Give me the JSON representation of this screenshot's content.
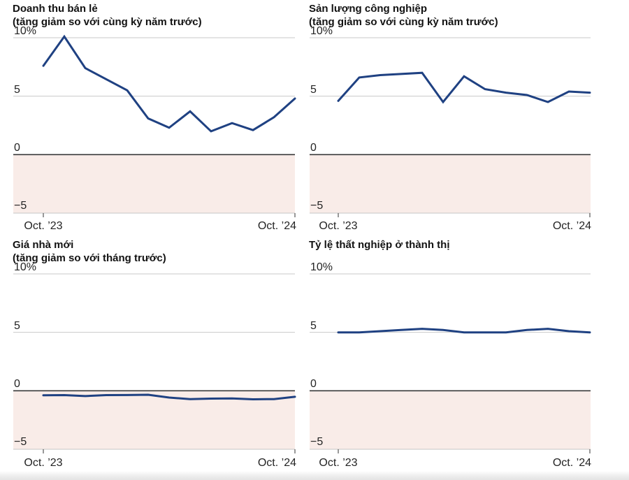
{
  "colors": {
    "line": "#1f4182",
    "grid": "#c9c9c9",
    "zero_line": "#383838",
    "axis": "#c6c6c6",
    "tick": "#555555",
    "negative_fill": "#f9ece8",
    "title_text": "#121212",
    "label_text": "#242424"
  },
  "chart_data": [
    {
      "id": "retail-sales",
      "type": "line",
      "title": "Doanh thu bán lẻ",
      "subtitle": "(tăng giảm so với cùng kỳ năm trước)",
      "y_tick_labels": {
        "top": "10%",
        "five": "5",
        "zero": "0",
        "neg_five": "−5"
      },
      "x_tick_labels": {
        "start": "Oct. ’23",
        "end": "Oct. ’24"
      },
      "ylim": [
        -5,
        10
      ],
      "grid_values": [
        10,
        5
      ],
      "x_unit": "months since Oct 2023",
      "x_range_months": [
        0,
        12
      ],
      "x_months": [
        0,
        1,
        2,
        4,
        5,
        6,
        7,
        8,
        9,
        10,
        11,
        12
      ],
      "values": [
        7.6,
        10.1,
        7.4,
        5.5,
        3.1,
        2.3,
        3.7,
        2.0,
        2.7,
        2.1,
        3.2,
        4.8
      ]
    },
    {
      "id": "industrial-production",
      "type": "line",
      "title": "Sản lượng công nghiệp",
      "subtitle": "(tăng giảm so với cùng kỳ năm trước)",
      "y_tick_labels": {
        "top": "10%",
        "five": "5",
        "zero": "0",
        "neg_five": "−5"
      },
      "x_tick_labels": {
        "start": "Oct. ’23",
        "end": "Oct. ’24"
      },
      "ylim": [
        -5,
        10
      ],
      "grid_values": [
        10,
        5
      ],
      "x_unit": "months since Oct 2023",
      "x_range_months": [
        0,
        12
      ],
      "x_months": [
        0,
        1,
        2,
        4,
        5,
        6,
        7,
        8,
        9,
        10,
        11,
        12
      ],
      "values": [
        4.6,
        6.6,
        6.8,
        7.0,
        4.5,
        6.7,
        5.6,
        5.3,
        5.1,
        4.5,
        5.4,
        5.3
      ]
    },
    {
      "id": "new-home-prices",
      "type": "line",
      "title": "Giá nhà mới",
      "subtitle": "(tăng giảm so với tháng trước)",
      "y_tick_labels": {
        "top": "10%",
        "five": "5",
        "zero": "0",
        "neg_five": "−5"
      },
      "x_tick_labels": {
        "start": "Oct. ’23",
        "end": "Oct. ’24"
      },
      "ylim": [
        -5,
        10
      ],
      "grid_values": [
        10,
        5
      ],
      "x_unit": "months since Oct 2023",
      "x_range_months": [
        0,
        12
      ],
      "x_months": [
        0,
        1,
        2,
        3,
        4,
        5,
        6,
        7,
        8,
        9,
        10,
        11,
        12
      ],
      "values": [
        -0.38,
        -0.37,
        -0.45,
        -0.37,
        -0.36,
        -0.34,
        -0.58,
        -0.71,
        -0.67,
        -0.65,
        -0.73,
        -0.71,
        -0.51
      ]
    },
    {
      "id": "urban-unemployment-rate",
      "type": "line",
      "title": "Tỷ lệ thất nghiệp ở thành thị",
      "subtitle": "",
      "y_tick_labels": {
        "top": "10%",
        "five": "5",
        "zero": "0",
        "neg_five": "−5"
      },
      "x_tick_labels": {
        "start": "Oct. ’23",
        "end": "Oct. ’24"
      },
      "ylim": [
        -5,
        10
      ],
      "grid_values": [
        10,
        5
      ],
      "x_unit": "months since Oct 2023",
      "x_range_months": [
        0,
        12
      ],
      "x_months": [
        0,
        1,
        2,
        3,
        4,
        5,
        6,
        7,
        8,
        9,
        10,
        11,
        12
      ],
      "values": [
        5.0,
        5.0,
        5.1,
        5.2,
        5.3,
        5.2,
        5.0,
        5.0,
        5.0,
        5.2,
        5.3,
        5.1,
        5.0
      ]
    }
  ]
}
